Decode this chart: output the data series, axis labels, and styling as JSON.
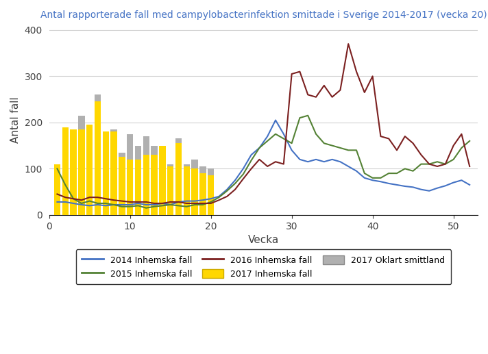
{
  "title": "Antal rapporterade fall med campylobacterinfektion smittade i Sverige 2014-2017 (vecka 20)",
  "xlabel": "Vecka",
  "ylabel": "Antal fall",
  "xlim": [
    0,
    53
  ],
  "ylim": [
    0,
    410
  ],
  "yticks": [
    0,
    100,
    200,
    300,
    400
  ],
  "xticks": [
    0,
    10,
    20,
    30,
    40,
    50
  ],
  "background_color": "#ffffff",
  "grid_color": "#d3d3d3",
  "title_color": "#4472c4",
  "axis_label_color": "#404040",
  "weeks": [
    1,
    2,
    3,
    4,
    5,
    6,
    7,
    8,
    9,
    10,
    11,
    12,
    13,
    14,
    15,
    16,
    17,
    18,
    19,
    20
  ],
  "bar2017_yellow": [
    110,
    190,
    185,
    185,
    195,
    245,
    180,
    180,
    125,
    120,
    120,
    130,
    130,
    150,
    105,
    155,
    105,
    100,
    90,
    85
  ],
  "bar2017_gray": [
    0,
    0,
    0,
    215,
    0,
    260,
    180,
    185,
    135,
    175,
    150,
    170,
    150,
    145,
    110,
    165,
    110,
    120,
    105,
    100
  ],
  "line2014_x": [
    1,
    2,
    3,
    4,
    5,
    6,
    7,
    8,
    9,
    10,
    11,
    12,
    13,
    14,
    15,
    16,
    17,
    18,
    19,
    20,
    21,
    22,
    23,
    24,
    25,
    26,
    27,
    28,
    29,
    30,
    31,
    32,
    33,
    34,
    35,
    36,
    37,
    38,
    39,
    40,
    41,
    42,
    43,
    44,
    45,
    46,
    47,
    48,
    49,
    50,
    51,
    52
  ],
  "line2014": [
    28,
    28,
    25,
    22,
    20,
    22,
    20,
    22,
    22,
    22,
    25,
    22,
    22,
    25,
    22,
    28,
    30,
    30,
    32,
    35,
    40,
    55,
    75,
    100,
    130,
    145,
    170,
    205,
    175,
    140,
    120,
    115,
    120,
    115,
    120,
    115,
    105,
    95,
    80,
    75,
    72,
    68,
    65,
    62,
    60,
    55,
    52,
    58,
    63,
    70,
    75,
    65
  ],
  "line2015_x": [
    1,
    2,
    3,
    4,
    5,
    6,
    7,
    8,
    9,
    10,
    11,
    12,
    13,
    14,
    15,
    16,
    17,
    18,
    19,
    20,
    21,
    22,
    23,
    24,
    25,
    26,
    27,
    28,
    29,
    30,
    31,
    32,
    33,
    34,
    35,
    36,
    37,
    38,
    39,
    40,
    41,
    42,
    43,
    44,
    45,
    46,
    47,
    48,
    49,
    50,
    51,
    52
  ],
  "line2015": [
    100,
    65,
    35,
    25,
    30,
    25,
    25,
    22,
    18,
    18,
    20,
    15,
    18,
    20,
    22,
    20,
    18,
    22,
    22,
    28,
    38,
    52,
    68,
    88,
    118,
    145,
    160,
    175,
    165,
    155,
    210,
    215,
    175,
    155,
    150,
    145,
    140,
    140,
    90,
    80,
    80,
    90,
    90,
    100,
    95,
    110,
    110,
    115,
    110,
    120,
    145,
    160
  ],
  "line2016_x": [
    1,
    2,
    3,
    4,
    5,
    6,
    7,
    8,
    9,
    10,
    11,
    12,
    13,
    14,
    15,
    16,
    17,
    18,
    19,
    20,
    21,
    22,
    23,
    24,
    25,
    26,
    27,
    28,
    29,
    30,
    31,
    32,
    33,
    34,
    35,
    36,
    37,
    38,
    39,
    40,
    41,
    42,
    43,
    44,
    45,
    46,
    47,
    48,
    49,
    50,
    51,
    52
  ],
  "line2016": [
    45,
    38,
    35,
    32,
    38,
    38,
    35,
    32,
    30,
    28,
    28,
    28,
    25,
    25,
    28,
    28,
    25,
    25,
    25,
    25,
    32,
    40,
    55,
    78,
    100,
    120,
    105,
    115,
    110,
    305,
    310,
    260,
    255,
    280,
    255,
    270,
    370,
    310,
    265,
    300,
    170,
    165,
    140,
    170,
    155,
    130,
    110,
    105,
    110,
    150,
    175,
    105
  ],
  "color_2014": "#4472c4",
  "color_2015": "#548235",
  "color_2016": "#7b2020",
  "color_2017_yellow": "#ffd700",
  "color_2017_gray": "#b0b0b0",
  "legend_labels": [
    "2014 Inhemska fall",
    "2015 Inhemska fall",
    "2016 Inhemska fall",
    "2017 Inhemska fall",
    "2017 Oklart smittland"
  ]
}
